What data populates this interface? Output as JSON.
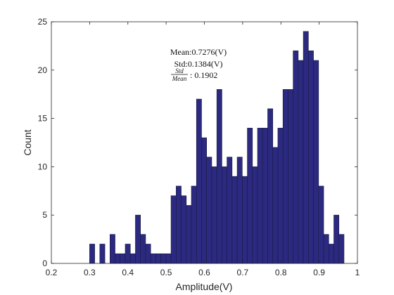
{
  "chart_data": {
    "type": "bar",
    "xlabel": "Amplitude(V)",
    "ylabel": "Count",
    "xlim": [
      0.2,
      1.0
    ],
    "ylim": [
      0,
      25
    ],
    "xticks": [
      "0.2",
      "0.3",
      "0.4",
      "0.5",
      "0.6",
      "0.7",
      "0.8",
      "0.9",
      "1"
    ],
    "yticks": [
      "0",
      "5",
      "10",
      "15",
      "20",
      "25"
    ],
    "grid": false,
    "bin_width": 0.0133,
    "bin_start": 0.3,
    "values": [
      2,
      0,
      2,
      0,
      3,
      1,
      1,
      2,
      1,
      5,
      3,
      2,
      1,
      1,
      1,
      1,
      7,
      8,
      7,
      6,
      8,
      17,
      13,
      11,
      10,
      18,
      10,
      11,
      9,
      11,
      9,
      14,
      10,
      14,
      14,
      16,
      12,
      14,
      18,
      18,
      22,
      21,
      24,
      22,
      21,
      8,
      3,
      2,
      5,
      3
    ],
    "bar_color": "#2b2a80",
    "bar_edge_color": "#1a1a40",
    "annotation": {
      "mean": "Mean:0.7276(V)",
      "std": "Std:0.1384(V)",
      "ratio_num": "Std",
      "ratio_den": "Mean",
      "ratio_value": ": 0.1902"
    }
  }
}
